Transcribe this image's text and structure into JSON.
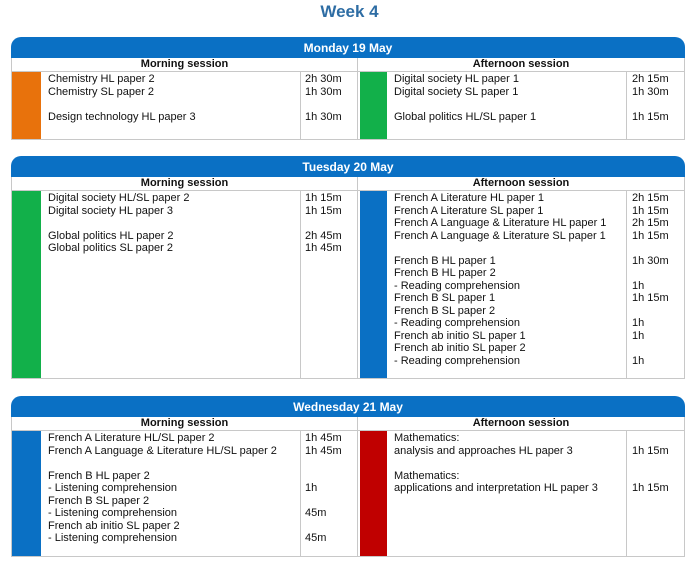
{
  "title": "Week 4",
  "days": [
    {
      "label": "Monday 19 May",
      "morning": {
        "heading": "Morning session",
        "color": "#e8720c",
        "rows": [
          {
            "text": "Chemistry HL paper 2",
            "time": "2h 30m"
          },
          {
            "text": "Chemistry SL paper 2",
            "time": "1h 30m"
          },
          {
            "text": "",
            "time": ""
          },
          {
            "text": "Design technology HL paper 3",
            "time": "1h 30m"
          }
        ]
      },
      "afternoon": {
        "heading": "Afternoon session",
        "color": "#12b04a",
        "rows": [
          {
            "text": "Digital society HL paper 1",
            "time": "2h 15m"
          },
          {
            "text": "Digital society SL paper 1",
            "time": "1h 30m"
          },
          {
            "text": "",
            "time": ""
          },
          {
            "text": "Global politics HL/SL paper 1",
            "time": "1h 15m"
          }
        ]
      }
    },
    {
      "label": "Tuesday 20 May",
      "morning": {
        "heading": "Morning session",
        "color": "#12b04a",
        "rows": [
          {
            "text": "Digital society HL/SL paper 2",
            "time": "1h 15m"
          },
          {
            "text": "Digital society HL paper 3",
            "time": "1h 15m"
          },
          {
            "text": "",
            "time": ""
          },
          {
            "text": "Global politics HL paper 2",
            "time": "2h 45m"
          },
          {
            "text": "Global politics SL paper 2",
            "time": "1h 45m"
          }
        ]
      },
      "afternoon": {
        "heading": "Afternoon session",
        "color": "#0a70c4",
        "rows": [
          {
            "text": "French A Literature HL paper 1",
            "time": "2h 15m"
          },
          {
            "text": "French A Literature SL paper 1",
            "time": "1h 15m"
          },
          {
            "text": "French A Language & Literature HL paper 1",
            "time": "2h 15m"
          },
          {
            "text": "French A Language & Literature SL paper 1",
            "time": "1h 15m"
          },
          {
            "text": "",
            "time": ""
          },
          {
            "text": "French B HL paper 1",
            "time": "1h 30m"
          },
          {
            "text": "French B HL paper 2",
            "time": ""
          },
          {
            "text": "- Reading comprehension",
            "time": "1h"
          },
          {
            "text": "French B SL paper 1",
            "time": "1h 15m"
          },
          {
            "text": "French B SL paper 2",
            "time": ""
          },
          {
            "text": "- Reading comprehension",
            "time": "1h"
          },
          {
            "text": "French ab initio SL paper 1",
            "time": "1h"
          },
          {
            "text": "French ab initio SL paper 2",
            "time": ""
          },
          {
            "text": "- Reading comprehension",
            "time": "1h"
          }
        ]
      }
    },
    {
      "label": "Wednesday 21 May",
      "morning": {
        "heading": "Morning session",
        "color": "#0a70c4",
        "rows": [
          {
            "text": "French A Literature HL/SL paper 2",
            "time": "1h 45m"
          },
          {
            "text": "French A Language & Literature HL/SL paper 2",
            "time": "1h 45m"
          },
          {
            "text": "",
            "time": ""
          },
          {
            "text": "French B HL paper 2",
            "time": ""
          },
          {
            "text": "- Listening comprehension",
            "time": "1h"
          },
          {
            "text": "French B SL paper 2",
            "time": ""
          },
          {
            "text": "- Listening comprehension",
            "time": "45m"
          },
          {
            "text": "French ab initio SL paper 2",
            "time": ""
          },
          {
            "text": "- Listening comprehension",
            "time": "45m"
          }
        ]
      },
      "afternoon": {
        "heading": "Afternoon session",
        "color": "#c00000",
        "rows": [
          {
            "text": "Mathematics:",
            "time": ""
          },
          {
            "text": "analysis and approaches HL paper 3",
            "time": "1h 15m"
          },
          {
            "text": "",
            "time": ""
          },
          {
            "text": "Mathematics:",
            "time": ""
          },
          {
            "text": "applications and interpretation HL paper 3",
            "time": "1h 15m"
          }
        ]
      }
    }
  ]
}
